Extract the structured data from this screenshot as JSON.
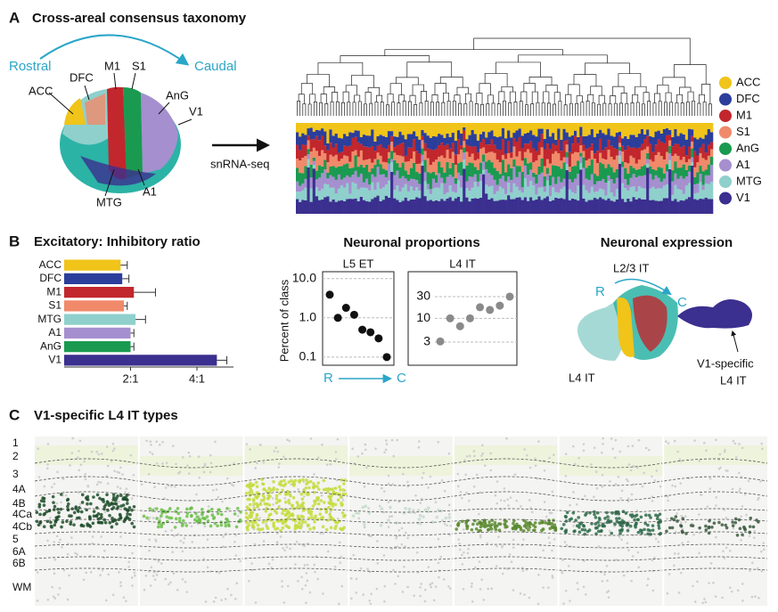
{
  "panel_a": {
    "label": "A",
    "title": "Cross-areal consensus taxonomy",
    "rostral": "Rostral",
    "caudal": "Caudal",
    "method": "snRNA-seq",
    "areas": [
      {
        "name": "DFC",
        "x": 0,
        "y": 0
      },
      {
        "name": "M1"
      },
      {
        "name": "S1"
      },
      {
        "name": "ACC"
      },
      {
        "name": "AnG"
      },
      {
        "name": "V1"
      },
      {
        "name": "MTG"
      },
      {
        "name": "A1"
      }
    ],
    "legend": [
      {
        "name": "ACC",
        "color": "#f0c419"
      },
      {
        "name": "DFC",
        "color": "#2b3e9b"
      },
      {
        "name": "M1",
        "color": "#c1272d"
      },
      {
        "name": "S1",
        "color": "#f08a6a"
      },
      {
        "name": "AnG",
        "color": "#1a9a50"
      },
      {
        "name": "A1",
        "color": "#a58fcf"
      },
      {
        "name": "MTG",
        "color": "#8fd0cc"
      },
      {
        "name": "V1",
        "color": "#3b2f8f"
      }
    ]
  },
  "panel_b": {
    "label": "B",
    "proportions_title": "Neuronal proportions",
    "ylabel": "Percent of class",
    "x_start": "R",
    "x_end": "C",
    "expression_title": "Neuronal expression",
    "expression_labels": {
      "top": "L2/3 IT",
      "r": "R",
      "c": "C",
      "left": "L4 IT",
      "right": [
        "V1-specific",
        "L4 IT"
      ]
    }
  },
  "chart_data": [
    {
      "type": "hbar",
      "title": "Excitatory: Inhibitory ratio",
      "categories": [
        "ACC",
        "DFC",
        "M1",
        "S1",
        "MTG",
        "A1",
        "AnG",
        "V1"
      ],
      "values": [
        1.7,
        1.75,
        2.1,
        1.8,
        2.15,
        2.0,
        2.0,
        4.6
      ],
      "errors": [
        0.2,
        0.2,
        0.65,
        0.1,
        0.3,
        0.1,
        0.1,
        0.3
      ],
      "colors": [
        "#f0c419",
        "#2b3e9b",
        "#c1272d",
        "#f08a6a",
        "#8fd0cc",
        "#a58fcf",
        "#1a9a50",
        "#3b2f8f"
      ],
      "xlim": [
        0,
        5.1
      ],
      "xticks": [
        {
          "value": 2,
          "label": "2:1"
        },
        {
          "value": 4,
          "label": "4:1"
        }
      ]
    },
    {
      "type": "dot",
      "title": "L5 ET",
      "categories": [
        null,
        null,
        null,
        null,
        null,
        null,
        null,
        null
      ],
      "values": [
        3.9,
        1.0,
        1.8,
        1.2,
        0.5,
        0.43,
        0.3,
        0.1
      ],
      "color": "#111111",
      "log_scale": true,
      "grid": true,
      "ylim": [
        0.062,
        15
      ],
      "yticks": [
        0.1,
        {
          "value": 1,
          "label": "1.0"
        },
        {
          "value": 10,
          "label": "10.0"
        }
      ]
    },
    {
      "type": "dot",
      "title": "L4 IT",
      "categories": [
        null,
        null,
        null,
        null,
        null,
        null,
        null,
        null
      ],
      "values": [
        3.1,
        10,
        6.7,
        10,
        17.5,
        15.3,
        19,
        30
      ],
      "color": "#8a8a8a",
      "log_scale": true,
      "grid": true,
      "ylim": [
        0.93,
        106
      ],
      "yticks": [
        3,
        10,
        30
      ]
    }
  ],
  "panel_c": {
    "label": "C",
    "title": "V1-specific L4 IT types",
    "layers": [
      "1",
      "2",
      "3",
      "4A",
      "4B",
      "4Ca",
      "4Cb",
      "5",
      "6A",
      "6B",
      "WM"
    ]
  }
}
